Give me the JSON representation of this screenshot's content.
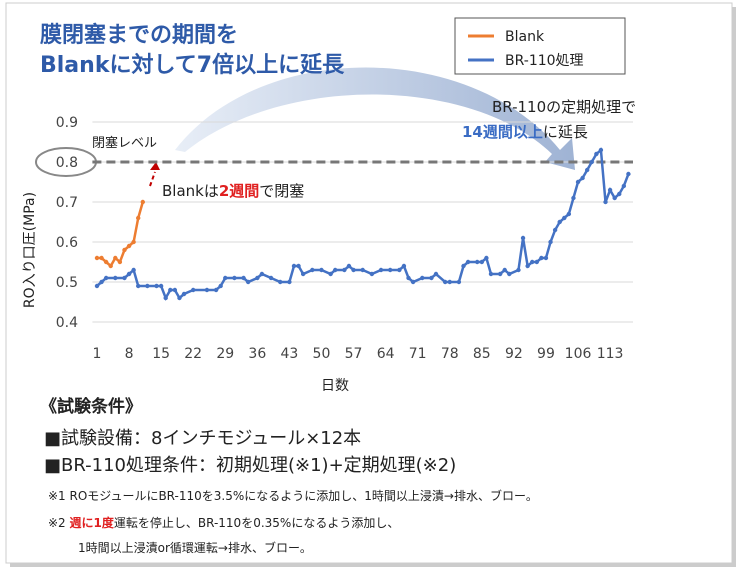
{
  "chart_data": {
    "type": "line",
    "headline": [
      "膜閉塞までの期間を",
      "Blankに対して7倍以上に延長"
    ],
    "ylabel": "RO入り口圧(MPa)",
    "xlabel": "日数",
    "xlim": [
      0,
      118
    ],
    "xticks": [
      1,
      8,
      15,
      22,
      29,
      36,
      43,
      50,
      57,
      64,
      71,
      78,
      85,
      92,
      99,
      106,
      113
    ],
    "ylim": [
      0.4,
      0.9
    ],
    "yticks": [
      0.4,
      0.5,
      0.6,
      0.7,
      0.8,
      0.9
    ],
    "grid": true,
    "threshold": 0.8,
    "threshold_label": "閉塞レベル",
    "annotation_blank": [
      "Blankは",
      "2週間",
      "で閉塞"
    ],
    "annotation_br": [
      "BR-110の定期処理で",
      "14週間以上",
      "に延長"
    ],
    "legend": "upper right",
    "series": [
      {
        "name": "Blank",
        "color": "#ed7d31",
        "x": [
          1,
          2,
          3,
          4,
          5,
          6,
          7,
          8,
          9,
          10,
          11
        ],
        "values": [
          0.56,
          0.56,
          0.55,
          0.54,
          0.56,
          0.55,
          0.58,
          0.59,
          0.6,
          0.66,
          0.7
        ]
      },
      {
        "name": "BR-110処理",
        "color": "#4472c4",
        "x": [
          1,
          2,
          3,
          5,
          7,
          8,
          9,
          10,
          12,
          14,
          15,
          16,
          17,
          18,
          19,
          20,
          22,
          25,
          27,
          28,
          29,
          31,
          33,
          34,
          36,
          37,
          39,
          41,
          43,
          44,
          45,
          46,
          48,
          50,
          52,
          53,
          55,
          56,
          57,
          59,
          61,
          63,
          65,
          67,
          68,
          69,
          70,
          72,
          74,
          75,
          77,
          78,
          80,
          81,
          82,
          84,
          85,
          86,
          87,
          89,
          90,
          91,
          93,
          94,
          95,
          96,
          97,
          98,
          99,
          100,
          101,
          102,
          103,
          104,
          105,
          106,
          107,
          108,
          109,
          110,
          111,
          112,
          113,
          114,
          115,
          116,
          117
        ],
        "values": [
          0.49,
          0.5,
          0.51,
          0.51,
          0.51,
          0.52,
          0.53,
          0.49,
          0.49,
          0.49,
          0.49,
          0.46,
          0.48,
          0.48,
          0.46,
          0.47,
          0.48,
          0.48,
          0.48,
          0.49,
          0.51,
          0.51,
          0.51,
          0.5,
          0.51,
          0.52,
          0.51,
          0.5,
          0.5,
          0.54,
          0.54,
          0.52,
          0.53,
          0.53,
          0.52,
          0.53,
          0.53,
          0.54,
          0.53,
          0.53,
          0.52,
          0.53,
          0.53,
          0.53,
          0.54,
          0.51,
          0.5,
          0.51,
          0.51,
          0.52,
          0.5,
          0.5,
          0.5,
          0.54,
          0.55,
          0.55,
          0.55,
          0.56,
          0.52,
          0.52,
          0.53,
          0.52,
          0.53,
          0.61,
          0.54,
          0.55,
          0.55,
          0.56,
          0.56,
          0.6,
          0.63,
          0.65,
          0.66,
          0.67,
          0.71,
          0.75,
          0.76,
          0.78,
          0.8,
          0.82,
          0.83,
          0.7,
          0.73,
          0.71,
          0.72,
          0.74,
          0.77
        ]
      }
    ]
  },
  "conditions": {
    "heading": "《試験条件》",
    "items": [
      "■試験設備：8インチモジュール×12本",
      "■BR-110処理条件：初期処理(※1)+定期処理(※2)"
    ],
    "note1": "※1 ROモジュールにBR-110を3.5%になるように添加し、1時間以上浸漬→排水、ブロー。",
    "note2": [
      "※2 ",
      "週に1度",
      "運転を停止し、BR-110を0.35%になるよう添加し、"
    ],
    "note3": "1時間以上浸漬or循環運転→排水、ブロー。"
  }
}
